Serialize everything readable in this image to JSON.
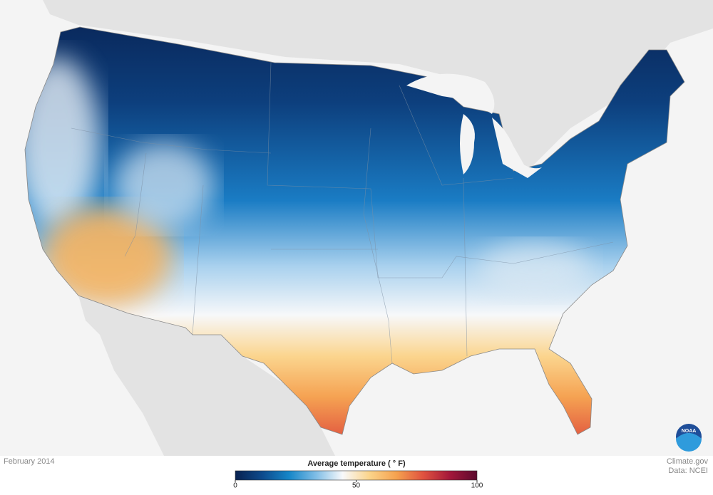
{
  "map": {
    "date": "February 2014",
    "logo": "NOAA",
    "credit": "Climate.gov",
    "source": "Data: NCEI"
  },
  "legend": {
    "title": "Average temperature ( ° F)",
    "range": [
      0,
      100
    ],
    "ticks": [
      0,
      50,
      100
    ],
    "colors": [
      "#08214f",
      "#0d4a8c",
      "#1586c8",
      "#7fbde6",
      "#f8f9fb",
      "#fbd48a",
      "#f5a24f",
      "#e0523f",
      "#a3173a",
      "#5c0a2e"
    ]
  }
}
